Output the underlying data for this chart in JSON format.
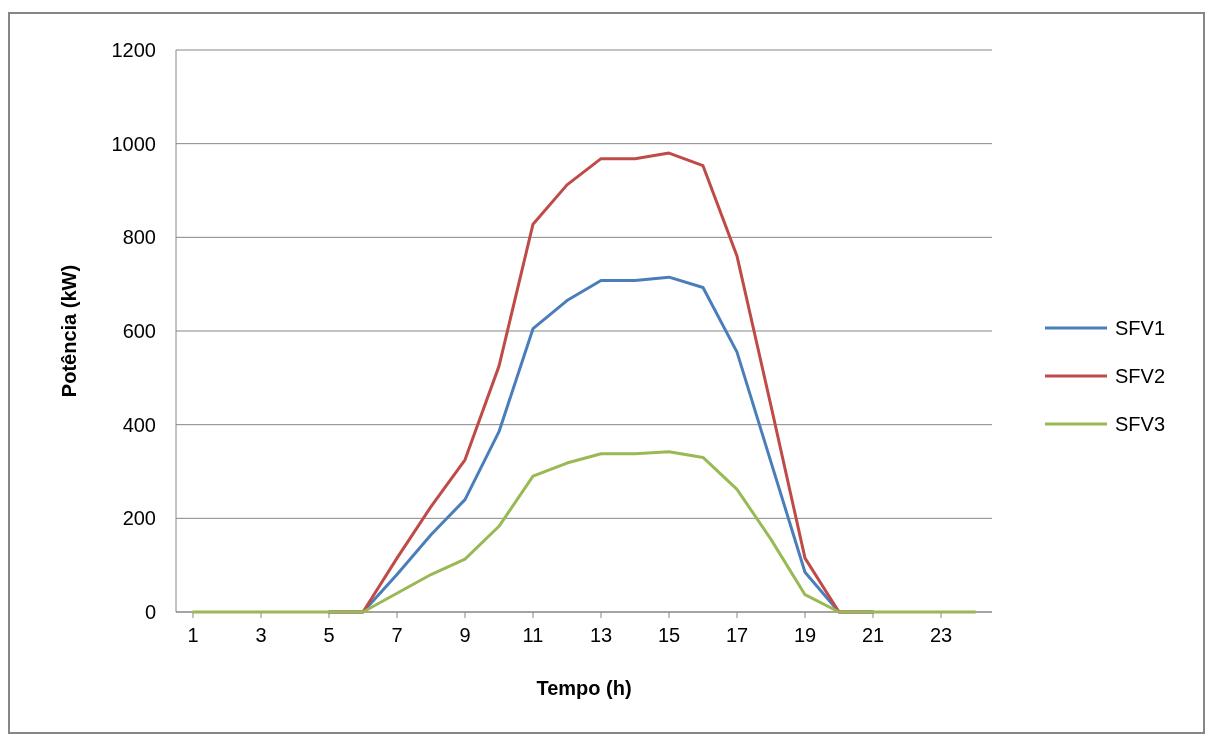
{
  "chart_data": {
    "type": "line",
    "xlabel": "Tempo (h)",
    "ylabel": "Potência (kW)",
    "x": [
      1,
      2,
      3,
      4,
      5,
      6,
      7,
      8,
      9,
      10,
      11,
      12,
      13,
      14,
      15,
      16,
      17,
      18,
      19,
      20,
      21,
      22,
      23,
      24
    ],
    "series": [
      {
        "name": "SFV1",
        "color": "#4a7ebb",
        "values": [
          null,
          null,
          null,
          null,
          0,
          0,
          80,
          165,
          240,
          385,
          605,
          665,
          708,
          708,
          715,
          693,
          555,
          320,
          85,
          0,
          0,
          null,
          null,
          null
        ]
      },
      {
        "name": "SFV2",
        "color": "#be4b48",
        "values": [
          null,
          null,
          null,
          null,
          0,
          0,
          115,
          225,
          325,
          525,
          828,
          912,
          968,
          968,
          980,
          953,
          760,
          440,
          115,
          0,
          0,
          null,
          null,
          null
        ]
      },
      {
        "name": "SFV3",
        "color": "#98b954",
        "values": [
          0,
          0,
          0,
          0,
          0,
          0,
          40,
          80,
          113,
          183,
          290,
          318,
          338,
          338,
          342,
          330,
          262,
          155,
          37,
          0,
          0,
          0,
          0,
          0
        ]
      }
    ],
    "xlim": [
      0.5,
      24.5
    ],
    "xticks": [
      1,
      3,
      5,
      7,
      9,
      11,
      13,
      15,
      17,
      19,
      21,
      23
    ],
    "ylim": [
      0,
      1200
    ],
    "yticks": [
      0,
      200,
      400,
      600,
      800,
      1000,
      1200
    ],
    "grid": "y",
    "legend": "right",
    "marker": "none",
    "line_style": "solid"
  }
}
